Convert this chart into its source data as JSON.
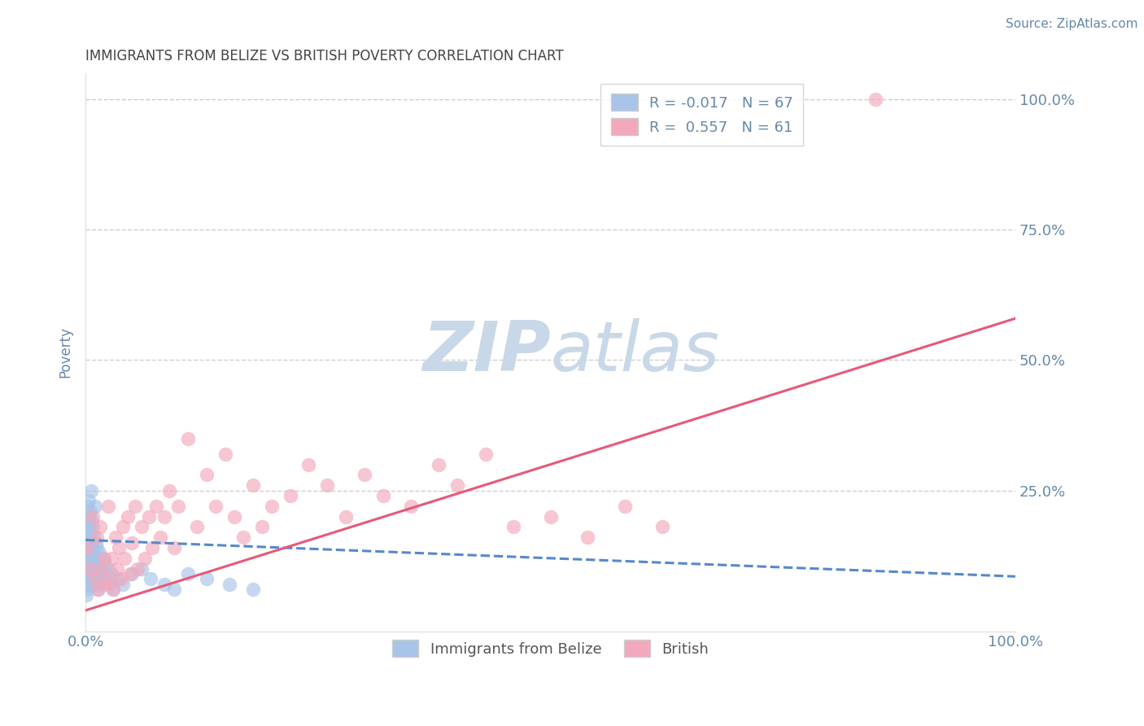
{
  "title": "IMMIGRANTS FROM BELIZE VS BRITISH POVERTY CORRELATION CHART",
  "source_text": "Source: ZipAtlas.com",
  "ylabel": "Poverty",
  "xlim": [
    0.0,
    1.0
  ],
  "ylim": [
    -0.02,
    1.05
  ],
  "x_ticks": [
    0.0,
    0.1,
    0.2,
    0.3,
    0.4,
    0.5,
    0.6,
    0.7,
    0.8,
    0.9,
    1.0
  ],
  "x_tick_labels": [
    "0.0%",
    "",
    "",
    "",
    "",
    "",
    "",
    "",
    "",
    "",
    "100.0%"
  ],
  "y_tick_positions": [
    0.0,
    0.25,
    0.5,
    0.75,
    1.0
  ],
  "y_tick_labels": [
    "",
    "25.0%",
    "50.0%",
    "75.0%",
    "100.0%"
  ],
  "legend_r_blue": "R = -0.017",
  "legend_n_blue": "N = 67",
  "legend_r_pink": "R =  0.557",
  "legend_n_pink": "N = 61",
  "blue_color": "#A8C4E8",
  "pink_color": "#F4A8BC",
  "blue_line_color": "#5588CC",
  "pink_line_color": "#E85878",
  "watermark_color": "#C8D8E8",
  "grid_color": "#BBBBBB",
  "title_color": "#444444",
  "axis_label_color": "#6688AA",
  "tick_label_color": "#6688AA",
  "blue_scatter_x": [
    0.001,
    0.001,
    0.001,
    0.001,
    0.002,
    0.002,
    0.002,
    0.002,
    0.002,
    0.003,
    0.003,
    0.003,
    0.003,
    0.003,
    0.004,
    0.004,
    0.004,
    0.004,
    0.005,
    0.005,
    0.005,
    0.005,
    0.006,
    0.006,
    0.006,
    0.006,
    0.007,
    0.007,
    0.007,
    0.008,
    0.008,
    0.008,
    0.009,
    0.009,
    0.01,
    0.01,
    0.01,
    0.011,
    0.011,
    0.012,
    0.012,
    0.013,
    0.013,
    0.014,
    0.015,
    0.015,
    0.016,
    0.017,
    0.018,
    0.019,
    0.02,
    0.022,
    0.024,
    0.026,
    0.028,
    0.03,
    0.035,
    0.04,
    0.05,
    0.06,
    0.07,
    0.085,
    0.095,
    0.11,
    0.13,
    0.155,
    0.18
  ],
  "blue_scatter_y": [
    0.05,
    0.08,
    0.12,
    0.16,
    0.06,
    0.1,
    0.14,
    0.18,
    0.22,
    0.07,
    0.11,
    0.15,
    0.19,
    0.23,
    0.08,
    0.12,
    0.16,
    0.2,
    0.09,
    0.13,
    0.17,
    0.21,
    0.07,
    0.11,
    0.15,
    0.25,
    0.09,
    0.14,
    0.19,
    0.08,
    0.13,
    0.18,
    0.1,
    0.16,
    0.07,
    0.12,
    0.22,
    0.09,
    0.15,
    0.08,
    0.14,
    0.06,
    0.11,
    0.09,
    0.07,
    0.13,
    0.1,
    0.08,
    0.12,
    0.09,
    0.11,
    0.08,
    0.1,
    0.07,
    0.09,
    0.06,
    0.08,
    0.07,
    0.09,
    0.1,
    0.08,
    0.07,
    0.06,
    0.09,
    0.08,
    0.07,
    0.06
  ],
  "pink_scatter_x": [
    0.002,
    0.005,
    0.008,
    0.01,
    0.012,
    0.014,
    0.016,
    0.018,
    0.02,
    0.022,
    0.024,
    0.026,
    0.028,
    0.03,
    0.032,
    0.034,
    0.036,
    0.038,
    0.04,
    0.042,
    0.045,
    0.048,
    0.05,
    0.053,
    0.056,
    0.06,
    0.064,
    0.068,
    0.072,
    0.076,
    0.08,
    0.085,
    0.09,
    0.095,
    0.1,
    0.11,
    0.12,
    0.13,
    0.14,
    0.15,
    0.16,
    0.17,
    0.18,
    0.19,
    0.2,
    0.22,
    0.24,
    0.26,
    0.28,
    0.3,
    0.32,
    0.35,
    0.38,
    0.4,
    0.43,
    0.46,
    0.5,
    0.54,
    0.58,
    0.62,
    0.85
  ],
  "pink_scatter_y": [
    0.14,
    0.1,
    0.2,
    0.08,
    0.16,
    0.06,
    0.18,
    0.1,
    0.12,
    0.07,
    0.22,
    0.08,
    0.12,
    0.06,
    0.16,
    0.1,
    0.14,
    0.08,
    0.18,
    0.12,
    0.2,
    0.09,
    0.15,
    0.22,
    0.1,
    0.18,
    0.12,
    0.2,
    0.14,
    0.22,
    0.16,
    0.2,
    0.25,
    0.14,
    0.22,
    0.35,
    0.18,
    0.28,
    0.22,
    0.32,
    0.2,
    0.16,
    0.26,
    0.18,
    0.22,
    0.24,
    0.3,
    0.26,
    0.2,
    0.28,
    0.24,
    0.22,
    0.3,
    0.26,
    0.32,
    0.18,
    0.2,
    0.16,
    0.22,
    0.18,
    1.0
  ],
  "blue_trend_x": [
    0.0,
    1.0
  ],
  "blue_trend_y": [
    0.155,
    0.085
  ],
  "pink_trend_x": [
    0.0,
    1.0
  ],
  "pink_trend_y": [
    0.02,
    0.58
  ]
}
